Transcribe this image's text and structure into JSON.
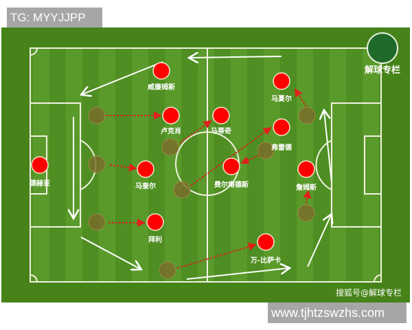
{
  "watermark_top": "TG: MYYJJPP",
  "watermark_bottom": "www.tjhtzswzhs.com",
  "logo_text": "解球专栏",
  "credit": "搜狐号@解球专栏",
  "colors": {
    "pitch": "#4a8a1c",
    "player": "#ff0000",
    "ghost": "#7a6a2a",
    "run": "#c0302a",
    "line": "#ffffff"
  },
  "players": [
    {
      "name": "威廉姆斯"
    },
    {
      "name": "卢克肖"
    },
    {
      "name": "马蒂奇"
    },
    {
      "name": "马夏尔"
    },
    {
      "name": "弗雷德"
    },
    {
      "name": "德赫亚"
    },
    {
      "name": "马奎尔"
    },
    {
      "name": "费尔南德斯"
    },
    {
      "name": "詹姆斯"
    },
    {
      "name": "拜利"
    },
    {
      "name": "万-比萨卡"
    }
  ]
}
